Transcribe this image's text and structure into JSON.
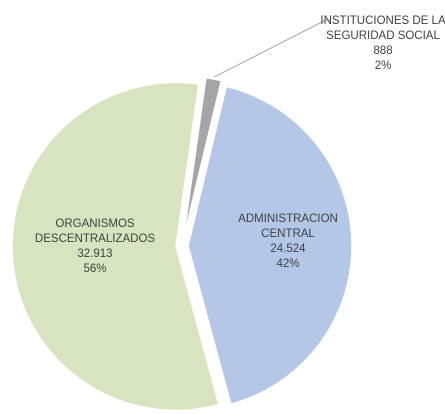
{
  "chart_data": {
    "type": "pie",
    "categories": [
      "INSTITUCIONES DE LA SEGURIDAD SOCIAL",
      "ADMINISTRACION CENTRAL",
      "ORGANISMOS DESCENTRALIZADOS"
    ],
    "values": [
      888,
      24524,
      32913
    ],
    "value_labels": [
      "888",
      "24.524",
      "32.913"
    ],
    "percentages": [
      2,
      42,
      56
    ],
    "percentage_labels": [
      "2%",
      "42%",
      "56%"
    ],
    "colors": [
      "#a5a5a5",
      "#b4c7e7",
      "#d8e4bf"
    ]
  }
}
